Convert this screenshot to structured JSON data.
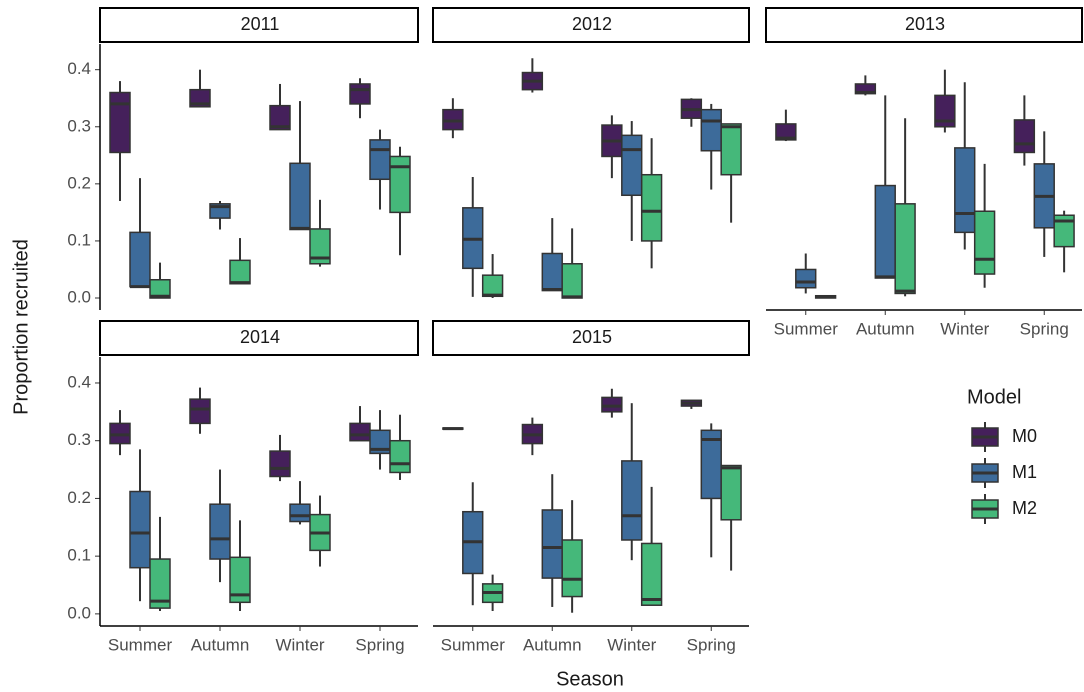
{
  "chart_data": {
    "type": "box",
    "xlabel": "Season",
    "ylabel": "Proportion recruited",
    "legend_title": "Model",
    "categories": [
      "Summer",
      "Autumn",
      "Winter",
      "Spring"
    ],
    "series": [
      {
        "name": "M0",
        "color": "#45205b"
      },
      {
        "name": "M1",
        "color": "#3d6b9a"
      },
      {
        "name": "M2",
        "color": "#45b87a"
      }
    ],
    "ylim": [
      -0.021,
      0.445
    ],
    "yticks": [
      "0.0",
      "0.1",
      "0.2",
      "0.3",
      "0.4"
    ],
    "panels": [
      {
        "title": "2011",
        "boxes": [
          [
            [
              0.17,
              0.255,
              0.34,
              0.36,
              0.38
            ],
            [
              0.335,
              0.335,
              0.34,
              0.365,
              0.4
            ],
            [
              0.295,
              0.295,
              0.3,
              0.337,
              0.375
            ],
            [
              0.315,
              0.34,
              0.365,
              0.375,
              0.385
            ]
          ],
          [
            [
              0.02,
              0.02,
              0.02,
              0.115,
              0.21
            ],
            [
              0.12,
              0.14,
              0.16,
              0.165,
              0.17
            ],
            [
              0.12,
              0.12,
              0.122,
              0.236,
              0.345
            ],
            [
              0.155,
              0.208,
              0.26,
              0.277,
              0.295
            ]
          ],
          [
            [
              0,
              0,
              0.003,
              0.032,
              0.062
            ],
            [
              0.025,
              0.025,
              0.027,
              0.066,
              0.105
            ],
            [
              0.055,
              0.06,
              0.07,
              0.121,
              0.172
            ],
            [
              0.075,
              0.15,
              0.23,
              0.248,
              0.265
            ]
          ]
        ]
      },
      {
        "title": "2012",
        "boxes": [
          [
            [
              0.28,
              0.295,
              0.31,
              0.33,
              0.35
            ],
            [
              0.36,
              0.365,
              0.38,
              0.395,
              0.42
            ],
            [
              0.21,
              0.248,
              0.275,
              0.303,
              0.32
            ],
            [
              0.3,
              0.315,
              0.33,
              0.348,
              0.35
            ]
          ],
          [
            [
              0.002,
              0.052,
              0.103,
              0.158,
              0.212
            ],
            [
              0.013,
              0.013,
              0.015,
              0.078,
              0.14
            ],
            [
              0.1,
              0.18,
              0.26,
              0.285,
              0.31
            ],
            [
              0.19,
              0.258,
              0.31,
              0.33,
              0.34
            ]
          ],
          [
            [
              0,
              0.003,
              0.005,
              0.04,
              0.077
            ],
            [
              0,
              0,
              0.002,
              0.06,
              0.122
            ],
            [
              0.052,
              0.1,
              0.152,
              0.216,
              0.28
            ],
            [
              0.132,
              0.216,
              0.3,
              0.305,
              0.305
            ]
          ]
        ]
      },
      {
        "title": "2013",
        "boxes": [
          [
            [
              0.275,
              0.277,
              0.28,
              0.305,
              0.33
            ],
            [
              0.355,
              0.358,
              0.36,
              0.375,
              0.39
            ],
            [
              0.29,
              0.3,
              0.31,
              0.355,
              0.4
            ],
            [
              0.232,
              0.255,
              0.27,
              0.312,
              0.355
            ]
          ],
          [
            [
              0.008,
              0.018,
              0.028,
              0.05,
              0.078
            ],
            [
              0.035,
              0.035,
              0.037,
              0.197,
              0.355
            ],
            [
              0.085,
              0.115,
              0.148,
              0.263,
              0.378
            ],
            [
              0.072,
              0.123,
              0.178,
              0.235,
              0.292
            ]
          ],
          [
            [
              0,
              0,
              0.002,
              0.004,
              0.004
            ],
            [
              0.003,
              0.008,
              0.012,
              0.165,
              0.315
            ],
            [
              0.018,
              0.042,
              0.068,
              0.152,
              0.235
            ],
            [
              0.045,
              0.09,
              0.135,
              0.145,
              0.153
            ]
          ]
        ]
      },
      {
        "title": "2014",
        "boxes": [
          [
            [
              0.275,
              0.295,
              0.31,
              0.33,
              0.353
            ],
            [
              0.312,
              0.33,
              0.355,
              0.372,
              0.392
            ],
            [
              0.23,
              0.238,
              0.252,
              0.282,
              0.31
            ],
            [
              0.3,
              0.3,
              0.31,
              0.33,
              0.36
            ]
          ],
          [
            [
              0.022,
              0.08,
              0.14,
              0.212,
              0.285
            ],
            [
              0.055,
              0.095,
              0.13,
              0.19,
              0.25
            ],
            [
              0.155,
              0.16,
              0.17,
              0.19,
              0.23
            ],
            [
              0.25,
              0.278,
              0.285,
              0.318,
              0.353
            ]
          ],
          [
            [
              0.005,
              0.01,
              0.022,
              0.095,
              0.168
            ],
            [
              0.005,
              0.02,
              0.033,
              0.098,
              0.162
            ],
            [
              0.082,
              0.11,
              0.14,
              0.172,
              0.205
            ],
            [
              0.232,
              0.245,
              0.26,
              0.3,
              0.345
            ]
          ]
        ]
      },
      {
        "title": "2015",
        "boxes": [
          [
            [
              0.32,
              0.32,
              0.321,
              0.322,
              0.322
            ],
            [
              0.275,
              0.295,
              0.31,
              0.328,
              0.34
            ],
            [
              0.34,
              0.35,
              0.36,
              0.375,
              0.39
            ],
            [
              0.355,
              0.36,
              0.365,
              0.37,
              0.37
            ]
          ],
          [
            [
              0.015,
              0.07,
              0.125,
              0.177,
              0.228
            ],
            [
              0.012,
              0.062,
              0.115,
              0.18,
              0.242
            ],
            [
              0.093,
              0.128,
              0.17,
              0.265,
              0.365
            ],
            [
              0.098,
              0.2,
              0.302,
              0.318,
              0.33
            ]
          ],
          [
            [
              0.005,
              0.02,
              0.037,
              0.052,
              0.068
            ],
            [
              0.002,
              0.03,
              0.06,
              0.128,
              0.197
            ],
            [
              0.015,
              0.015,
              0.025,
              0.122,
              0.22
            ],
            [
              0.075,
              0.163,
              0.253,
              0.257,
              0.257
            ]
          ]
        ]
      }
    ]
  }
}
